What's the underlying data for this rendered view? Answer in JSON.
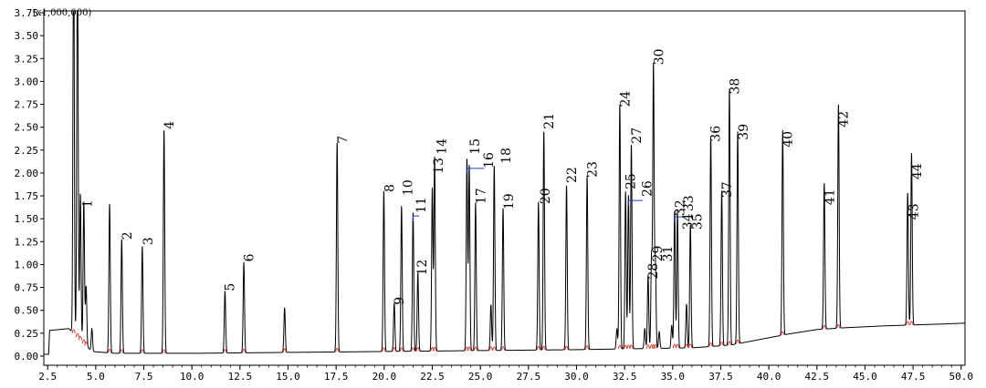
{
  "chart_data": {
    "type": "line",
    "title": "",
    "xlabel": "",
    "ylabel": "",
    "y_multiplier_label": "(x1,000,000)",
    "xlim": [
      2.3,
      50.2
    ],
    "ylim": [
      -0.1,
      3.77
    ],
    "x_ticks": [
      "2.5",
      "5.0",
      "7.5",
      "10.0",
      "12.5",
      "15.0",
      "17.5",
      "20.0",
      "22.5",
      "25.0",
      "27.5",
      "30.0",
      "32.5",
      "35.0",
      "37.5",
      "40.0",
      "42.5",
      "45.0",
      "47.5",
      "50.0"
    ],
    "y_ticks": [
      "0.00",
      "0.25",
      "0.50",
      "0.75",
      "1.00",
      "1.25",
      "1.50",
      "1.75",
      "2.00",
      "2.25",
      "2.50",
      "2.75",
      "3.00",
      "3.25",
      "3.50",
      "3.75"
    ],
    "series": [
      {
        "baseline": [
          [
            2.3,
            0.02
          ],
          [
            2.55,
            0.02
          ],
          [
            2.6,
            0.28
          ],
          [
            3.6,
            0.3
          ],
          [
            4.8,
            0.05
          ],
          [
            6,
            0.03
          ],
          [
            10,
            0.03
          ],
          [
            15,
            0.04
          ],
          [
            20,
            0.05
          ],
          [
            25,
            0.06
          ],
          [
            30,
            0.07
          ],
          [
            33,
            0.08
          ],
          [
            36,
            0.09
          ],
          [
            38,
            0.12
          ],
          [
            39.5,
            0.18
          ],
          [
            41,
            0.24
          ],
          [
            42.5,
            0.29
          ],
          [
            44,
            0.31
          ],
          [
            46,
            0.33
          ],
          [
            47.5,
            0.34
          ],
          [
            49,
            0.35
          ],
          [
            50.2,
            0.36
          ]
        ],
        "peaks": [
          {
            "x": 3.85,
            "h": 4.5
          },
          {
            "x": 4.05,
            "h": 4.5
          },
          {
            "x": 4.2,
            "h": 1.6
          },
          {
            "x": 4.38,
            "h": 1.55
          },
          {
            "x": 4.5,
            "h": 0.65
          },
          {
            "x": 4.8,
            "h": 0.25
          },
          {
            "x": 5.72,
            "h": 1.63
          },
          {
            "x": 6.35,
            "h": 1.25
          },
          {
            "x": 7.42,
            "h": 1.17
          },
          {
            "x": 8.55,
            "h": 2.45
          },
          {
            "x": 11.72,
            "h": 0.68
          },
          {
            "x": 12.7,
            "h": 0.99
          },
          {
            "x": 14.82,
            "h": 0.49
          },
          {
            "x": 17.55,
            "h": 2.3
          },
          {
            "x": 19.98,
            "h": 1.76
          },
          {
            "x": 20.52,
            "h": 0.53
          },
          {
            "x": 20.9,
            "h": 1.59
          },
          {
            "x": 21.5,
            "h": 1.52
          },
          {
            "x": 21.75,
            "h": 0.85
          },
          {
            "x": 22.5,
            "h": 1.78
          },
          {
            "x": 22.62,
            "h": 2.12
          },
          {
            "x": 24.3,
            "h": 2.1
          },
          {
            "x": 24.42,
            "h": 2.03
          },
          {
            "x": 24.75,
            "h": 1.62
          },
          {
            "x": 25.55,
            "h": 0.5
          },
          {
            "x": 25.72,
            "h": 2.03
          },
          {
            "x": 26.18,
            "h": 1.56
          },
          {
            "x": 28.02,
            "h": 1.62
          },
          {
            "x": 28.3,
            "h": 2.4
          },
          {
            "x": 29.48,
            "h": 1.8
          },
          {
            "x": 30.55,
            "h": 1.9
          },
          {
            "x": 32.1,
            "h": 0.22
          },
          {
            "x": 32.25,
            "h": 2.68
          },
          {
            "x": 32.55,
            "h": 1.72
          },
          {
            "x": 32.7,
            "h": 1.68
          },
          {
            "x": 32.85,
            "h": 2.24
          },
          {
            "x": 33.55,
            "h": 0.22
          },
          {
            "x": 33.72,
            "h": 0.8
          },
          {
            "x": 33.9,
            "h": 1.0
          },
          {
            "x": 34.0,
            "h": 3.1
          },
          {
            "x": 34.1,
            "h": 0.95
          },
          {
            "x": 34.3,
            "h": 0.18
          },
          {
            "x": 34.95,
            "h": 0.25
          },
          {
            "x": 35.1,
            "h": 1.5
          },
          {
            "x": 35.25,
            "h": 1.5
          },
          {
            "x": 35.72,
            "h": 0.48
          },
          {
            "x": 35.92,
            "h": 1.35
          },
          {
            "x": 36.98,
            "h": 2.3
          },
          {
            "x": 37.55,
            "h": 1.7
          },
          {
            "x": 37.95,
            "h": 2.8
          },
          {
            "x": 38.38,
            "h": 2.32
          },
          {
            "x": 40.72,
            "h": 2.24
          },
          {
            "x": 42.88,
            "h": 1.6
          },
          {
            "x": 43.62,
            "h": 2.45
          },
          {
            "x": 47.22,
            "h": 1.45
          },
          {
            "x": 47.42,
            "h": 1.88
          }
        ]
      }
    ],
    "peak_labels": [
      {
        "text": "1",
        "x": 4.8,
        "y": 1.62
      },
      {
        "text": "2",
        "x": 6.85,
        "y": 1.27
      },
      {
        "text": "3",
        "x": 7.95,
        "y": 1.21
      },
      {
        "text": "4",
        "x": 9.05,
        "y": 2.48
      },
      {
        "text": "5",
        "x": 12.2,
        "y": 0.71
      },
      {
        "text": "6",
        "x": 13.2,
        "y": 1.03
      },
      {
        "text": "7",
        "x": 18.05,
        "y": 2.32
      },
      {
        "text": "8",
        "x": 20.5,
        "y": 1.79
      },
      {
        "text": "9",
        "x": 21.0,
        "y": 0.56
      },
      {
        "text": "10",
        "x": 21.45,
        "y": 1.75
      },
      {
        "text": "11",
        "x": 22.15,
        "y": 1.56
      },
      {
        "text": "12",
        "x": 22.2,
        "y": 0.88
      },
      {
        "text": "13",
        "x": 23.05,
        "y": 1.99
      },
      {
        "text": "14",
        "x": 23.2,
        "y": 2.2
      },
      {
        "text": "15",
        "x": 24.95,
        "y": 2.2
      },
      {
        "text": "16",
        "x": 25.65,
        "y": 2.05
      },
      {
        "text": "17",
        "x": 25.25,
        "y": 1.66
      },
      {
        "text": "18",
        "x": 26.55,
        "y": 2.1
      },
      {
        "text": "19",
        "x": 26.7,
        "y": 1.6
      },
      {
        "text": "20",
        "x": 28.6,
        "y": 1.66
      },
      {
        "text": "21",
        "x": 28.8,
        "y": 2.48
      },
      {
        "text": "22",
        "x": 29.98,
        "y": 1.89
      },
      {
        "text": "23",
        "x": 31.05,
        "y": 1.95
      },
      {
        "text": "24",
        "x": 32.75,
        "y": 2.72
      },
      {
        "text": "25",
        "x": 33.05,
        "y": 1.82
      },
      {
        "text": "26",
        "x": 33.9,
        "y": 1.74
      },
      {
        "text": "27",
        "x": 33.35,
        "y": 2.32
      },
      {
        "text": "28",
        "x": 34.2,
        "y": 0.84
      },
      {
        "text": "29",
        "x": 34.45,
        "y": 1.03
      },
      {
        "text": "30",
        "x": 34.5,
        "y": 3.18
      },
      {
        "text": "31",
        "x": 34.95,
        "y": 1.03
      },
      {
        "text": "32",
        "x": 35.6,
        "y": 1.53
      },
      {
        "text": "33",
        "x": 36.05,
        "y": 1.58
      },
      {
        "text": "34",
        "x": 36.0,
        "y": 1.38
      },
      {
        "text": "35",
        "x": 36.5,
        "y": 1.38
      },
      {
        "text": "36",
        "x": 37.45,
        "y": 2.34
      },
      {
        "text": "37",
        "x": 38.05,
        "y": 1.73
      },
      {
        "text": "38",
        "x": 38.45,
        "y": 2.86
      },
      {
        "text": "39",
        "x": 38.9,
        "y": 2.36
      },
      {
        "text": "40",
        "x": 41.2,
        "y": 2.28
      },
      {
        "text": "41",
        "x": 43.38,
        "y": 1.65
      },
      {
        "text": "42",
        "x": 44.1,
        "y": 2.5
      },
      {
        "text": "43",
        "x": 47.75,
        "y": 1.49
      },
      {
        "text": "44",
        "x": 47.92,
        "y": 1.93
      }
    ],
    "bracket_marks": [
      {
        "x1": 21.5,
        "x2": 21.82,
        "y": 1.53,
        "color": "#1f3fbf"
      },
      {
        "x1": 24.32,
        "x2": 25.2,
        "y": 2.05,
        "color": "#1f3fbf"
      },
      {
        "x1": 32.7,
        "x2": 33.45,
        "y": 1.7,
        "color": "#1f3fbf"
      },
      {
        "x1": 35.12,
        "x2": 35.55,
        "y": 1.52,
        "color": "#1f3fbf"
      }
    ],
    "colors": {
      "trace": "#000000",
      "baseline_marks": "#d0342c",
      "brackets": "#1f3fbf",
      "frame": "#000000"
    },
    "grid": false
  }
}
